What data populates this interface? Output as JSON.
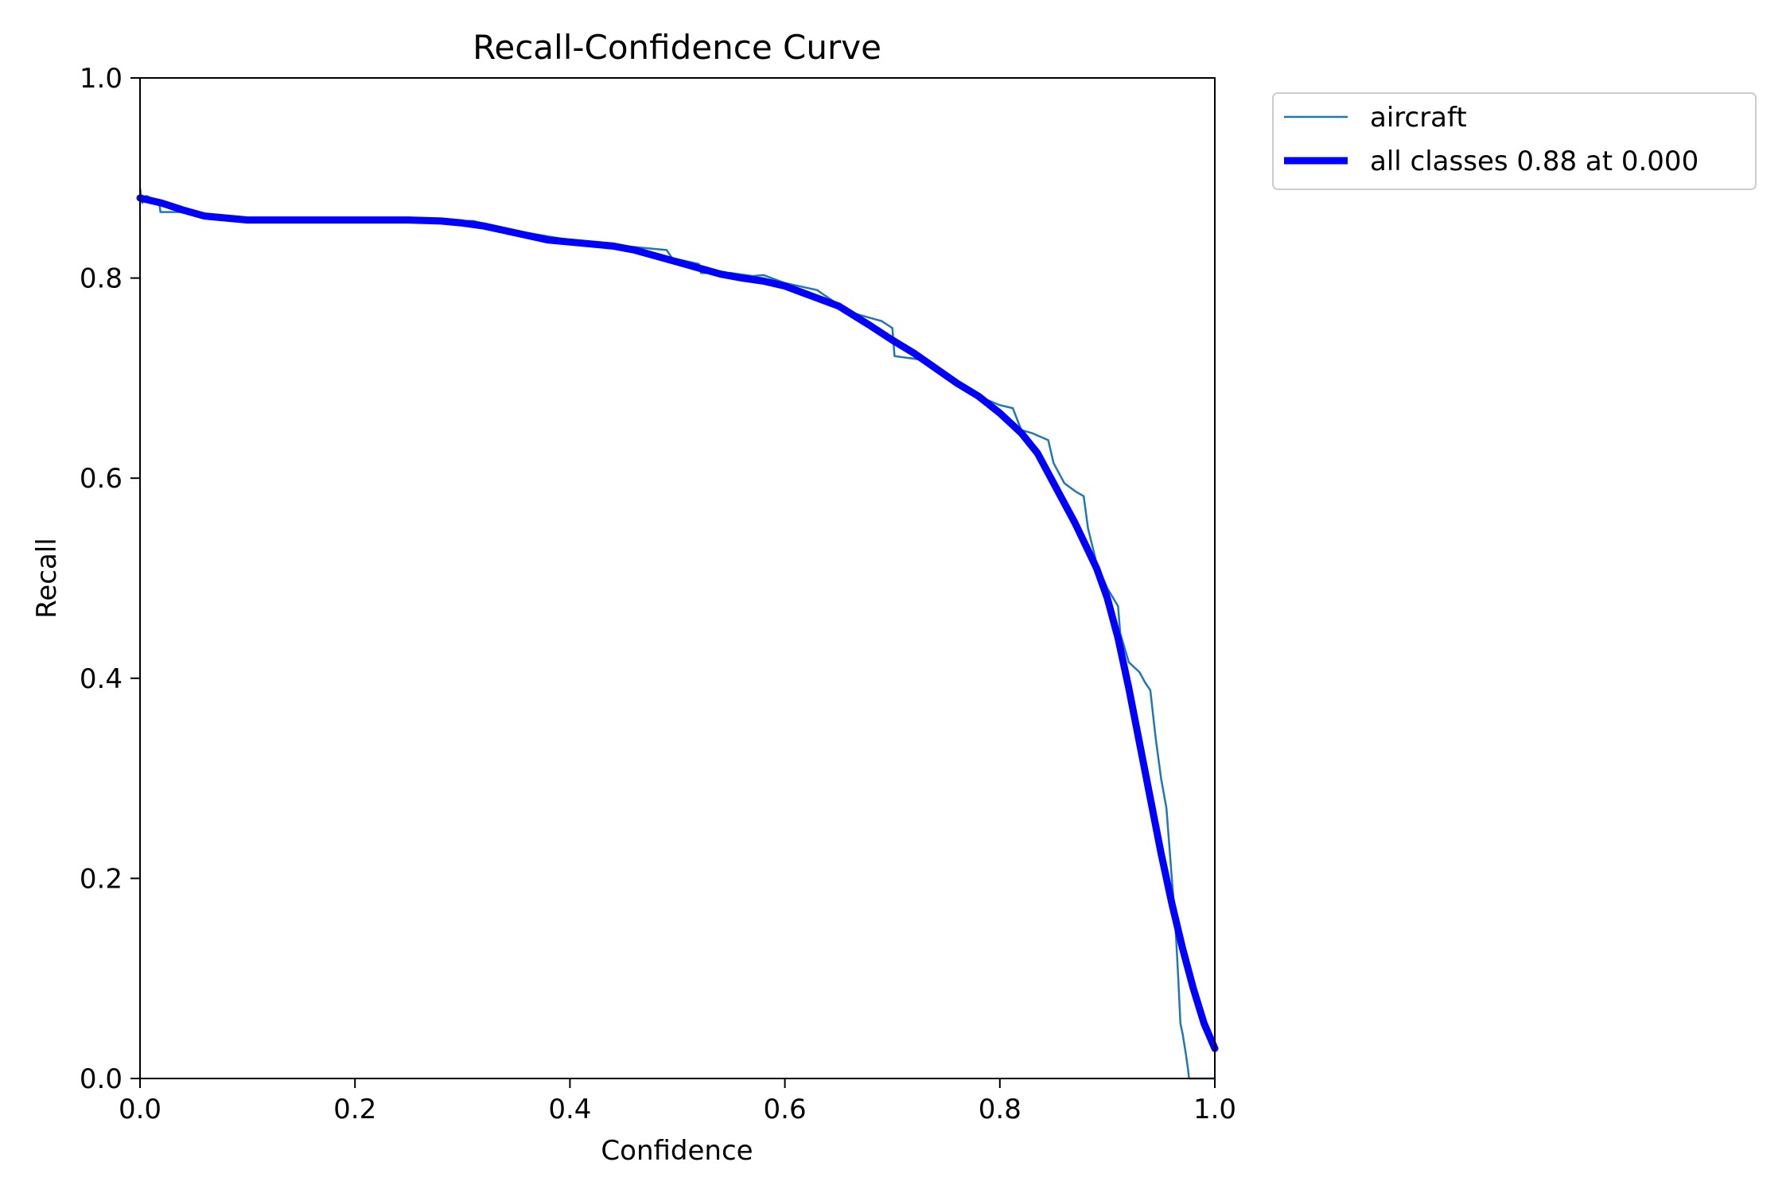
{
  "chart_data": {
    "type": "line",
    "title": "Recall-Confidence Curve",
    "xlabel": "Confidence",
    "ylabel": "Recall",
    "xlim": [
      0.0,
      1.0
    ],
    "ylim": [
      0.0,
      1.0
    ],
    "xticks": [
      "0.0",
      "0.2",
      "0.4",
      "0.6",
      "0.8",
      "1.0"
    ],
    "yticks": [
      "0.0",
      "0.2",
      "0.4",
      "0.6",
      "0.8",
      "1.0"
    ],
    "grid": false,
    "legend_position": "outside-top-right",
    "series": [
      {
        "name": "aircraft",
        "color": "#1f77b4",
        "style": "thin",
        "x": [
          0.0,
          0.002,
          0.006,
          0.01,
          0.018,
          0.019,
          0.05,
          0.058,
          0.059,
          0.1,
          0.2,
          0.3,
          0.31,
          0.35,
          0.4,
          0.45,
          0.49,
          0.495,
          0.52,
          0.522,
          0.55,
          0.57,
          0.58,
          0.6,
          0.63,
          0.634,
          0.66,
          0.69,
          0.7,
          0.702,
          0.73,
          0.737,
          0.75,
          0.77,
          0.775,
          0.8,
          0.812,
          0.82,
          0.83,
          0.845,
          0.85,
          0.86,
          0.87,
          0.878,
          0.882,
          0.89,
          0.9,
          0.91,
          0.912,
          0.92,
          0.93,
          0.935,
          0.94,
          0.945,
          0.95,
          0.955,
          0.96,
          0.963,
          0.966,
          0.968,
          0.97,
          0.973,
          0.975,
          0.976,
          0.98,
          1.0
        ],
        "y": [
          0.89,
          0.875,
          0.882,
          0.88,
          0.875,
          0.866,
          0.866,
          0.865,
          0.86,
          0.858,
          0.858,
          0.857,
          0.857,
          0.847,
          0.838,
          0.832,
          0.828,
          0.82,
          0.814,
          0.805,
          0.805,
          0.802,
          0.803,
          0.795,
          0.788,
          0.785,
          0.766,
          0.757,
          0.75,
          0.722,
          0.718,
          0.713,
          0.7,
          0.69,
          0.684,
          0.673,
          0.67,
          0.648,
          0.645,
          0.638,
          0.615,
          0.595,
          0.587,
          0.582,
          0.55,
          0.515,
          0.49,
          0.472,
          0.445,
          0.416,
          0.406,
          0.396,
          0.388,
          0.34,
          0.3,
          0.27,
          0.2,
          0.16,
          0.1,
          0.055,
          0.045,
          0.025,
          0.01,
          0.0,
          0.0,
          0.0
        ]
      },
      {
        "name": "all classes 0.88 at 0.000",
        "color": "#0000ff",
        "style": "thick",
        "x": [
          0.0,
          0.02,
          0.04,
          0.06,
          0.08,
          0.1,
          0.15,
          0.2,
          0.25,
          0.28,
          0.3,
          0.32,
          0.35,
          0.38,
          0.4,
          0.44,
          0.46,
          0.48,
          0.5,
          0.52,
          0.54,
          0.56,
          0.58,
          0.6,
          0.62,
          0.65,
          0.68,
          0.7,
          0.72,
          0.74,
          0.76,
          0.78,
          0.8,
          0.82,
          0.835,
          0.85,
          0.87,
          0.89,
          0.9,
          0.91,
          0.92,
          0.93,
          0.94,
          0.95,
          0.96,
          0.97,
          0.98,
          0.99,
          1.0
        ],
        "y": [
          0.88,
          0.875,
          0.868,
          0.862,
          0.86,
          0.858,
          0.858,
          0.858,
          0.858,
          0.857,
          0.855,
          0.852,
          0.845,
          0.838,
          0.836,
          0.832,
          0.828,
          0.822,
          0.816,
          0.81,
          0.804,
          0.8,
          0.797,
          0.792,
          0.784,
          0.772,
          0.752,
          0.738,
          0.725,
          0.71,
          0.695,
          0.682,
          0.665,
          0.645,
          0.625,
          0.595,
          0.555,
          0.51,
          0.48,
          0.44,
          0.39,
          0.335,
          0.28,
          0.225,
          0.175,
          0.13,
          0.09,
          0.055,
          0.03
        ]
      }
    ]
  }
}
